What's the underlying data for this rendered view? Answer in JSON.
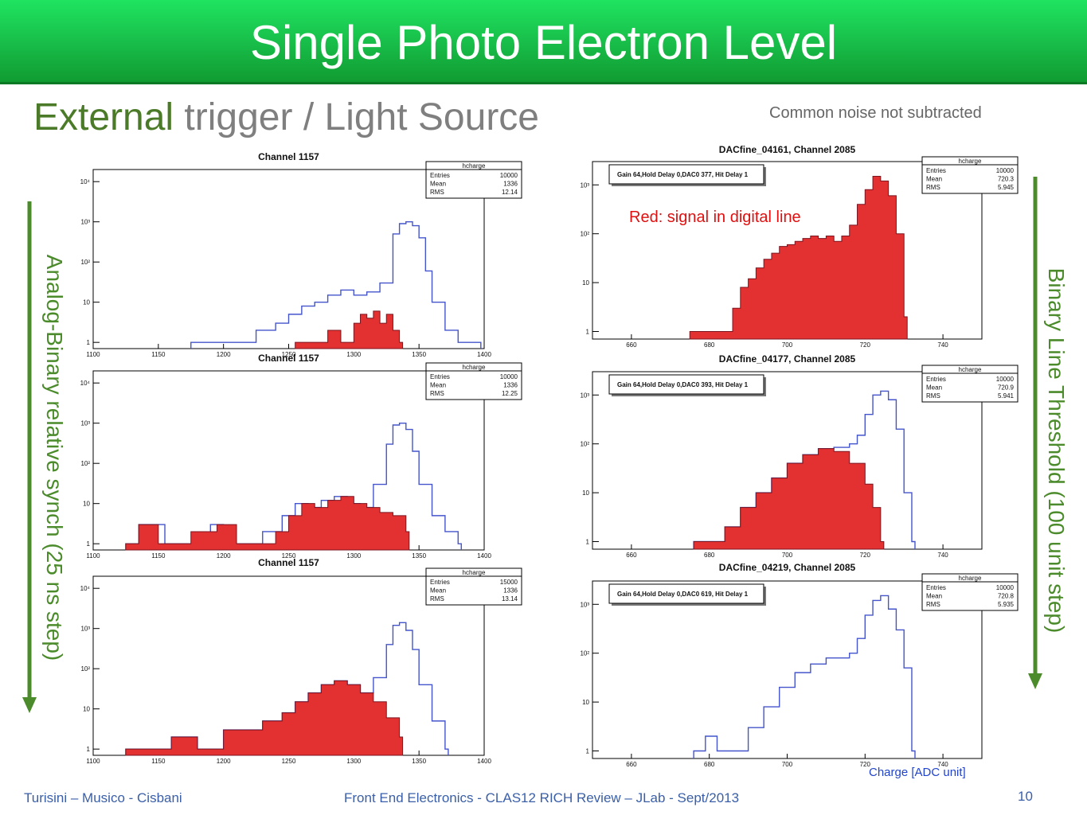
{
  "slide": {
    "title": "Single Photo Electron Level",
    "subtitle_part1": "External",
    "subtitle_part2": " trigger / Light Source",
    "note": "Common noise not subtracted",
    "red_note": "Red: signal in digital line",
    "charge_label": "Charge [ADC unit]",
    "left_label": "Analog-Binary relative synch (25 ns step)",
    "right_label": "Binary Line Threshold (100 unit step)",
    "footer_left": "Turisini – Musico - Cisbani",
    "footer_mid": "Front End Electronics - CLAS12 RICH Review – JLab - Sept/2013",
    "page_number": "10",
    "colors": {
      "title_bar": "#19c24c",
      "arrow": "#4b8b2b",
      "hist_outline": "#4455cc",
      "hist_fill": "#e33030",
      "red_text": "#e01010"
    }
  },
  "chart_data": [
    {
      "type": "histogram",
      "title": "Channel 1157",
      "xlim": [
        1100,
        1400
      ],
      "xticks": [
        "1100",
        "1150",
        "1200",
        "1250",
        "1300",
        "1350",
        "1400"
      ],
      "yscale": "log",
      "ylim": [
        0.7,
        20000
      ],
      "yticks": [
        "1",
        "10",
        "10²",
        "10³",
        "10⁴"
      ],
      "stats": {
        "name": "hcharge",
        "rows": [
          [
            "Entries",
            "10000"
          ],
          [
            "Mean",
            "1336"
          ],
          [
            "RMS",
            "12.14"
          ]
        ]
      },
      "series": [
        {
          "kind": "outline",
          "x": [
            1175,
            1190,
            1200,
            1215,
            1225,
            1240,
            1250,
            1260,
            1270,
            1280,
            1290,
            1300,
            1310,
            1320,
            1330,
            1335,
            1340,
            1345,
            1350,
            1355,
            1360,
            1370,
            1380,
            1395
          ],
          "y": [
            1,
            1,
            1,
            1,
            2,
            3,
            5,
            8,
            10,
            15,
            20,
            15,
            18,
            30,
            500,
            900,
            1000,
            800,
            400,
            60,
            10,
            2,
            1,
            1
          ]
        },
        {
          "kind": "filled",
          "x": [
            1255,
            1265,
            1280,
            1290,
            1300,
            1305,
            1310,
            1315,
            1320,
            1325,
            1330,
            1335
          ],
          "y": [
            1,
            1,
            2,
            1,
            3,
            5,
            4,
            6,
            3,
            5,
            2,
            1
          ]
        }
      ]
    },
    {
      "type": "histogram",
      "title": "Channel 1157",
      "xlim": [
        1100,
        1400
      ],
      "xticks": [
        "1100",
        "1150",
        "1200",
        "1250",
        "1300",
        "1350",
        "1400"
      ],
      "yscale": "log",
      "ylim": [
        0.7,
        20000
      ],
      "yticks": [
        "1",
        "10",
        "10²",
        "10³",
        "10⁴"
      ],
      "stats": {
        "name": "hcharge",
        "rows": [
          [
            "Entries",
            "10000"
          ],
          [
            "Mean",
            "1336"
          ],
          [
            "RMS",
            "12.25"
          ]
        ]
      },
      "series": [
        {
          "kind": "outline",
          "x": [
            1125,
            1135,
            1155,
            1190,
            1200,
            1215,
            1230,
            1245,
            1255,
            1265,
            1275,
            1285,
            1295,
            1305,
            1315,
            1325,
            1330,
            1335,
            1340,
            1345,
            1350,
            1360,
            1370,
            1380
          ],
          "y": [
            1,
            3,
            1,
            3,
            1,
            1,
            2,
            5,
            10,
            8,
            12,
            15,
            10,
            8,
            30,
            300,
            900,
            1000,
            700,
            200,
            30,
            5,
            2,
            1
          ]
        },
        {
          "kind": "filled",
          "x": [
            1125,
            1135,
            1150,
            1165,
            1175,
            1195,
            1210,
            1220,
            1230,
            1240,
            1250,
            1260,
            1270,
            1280,
            1290,
            1300,
            1310,
            1320,
            1330,
            1340
          ],
          "y": [
            1,
            3,
            1,
            1,
            2,
            3,
            1,
            1,
            1,
            2,
            5,
            10,
            8,
            12,
            15,
            10,
            8,
            6,
            5,
            2
          ]
        }
      ]
    },
    {
      "type": "histogram",
      "title": "Channel 1157",
      "xlim": [
        1100,
        1400
      ],
      "xticks": [
        "1100",
        "1150",
        "1200",
        "1250",
        "1300",
        "1350",
        "1400"
      ],
      "yscale": "log",
      "ylim": [
        0.7,
        20000
      ],
      "yticks": [
        "1",
        "10",
        "10²",
        "10³",
        "10⁴"
      ],
      "stats": {
        "name": "hcharge",
        "rows": [
          [
            "Entries",
            "15000"
          ],
          [
            "Mean",
            "1336"
          ],
          [
            "RMS",
            "13.14"
          ]
        ]
      },
      "series": [
        {
          "kind": "outline",
          "x": [
            1125,
            1140,
            1160,
            1180,
            1200,
            1215,
            1230,
            1245,
            1255,
            1265,
            1275,
            1285,
            1295,
            1305,
            1315,
            1325,
            1330,
            1335,
            1340,
            1345,
            1350,
            1360,
            1370
          ],
          "y": [
            1,
            1,
            2,
            1,
            3,
            3,
            5,
            8,
            15,
            25,
            40,
            50,
            40,
            25,
            60,
            400,
            1200,
            1400,
            900,
            300,
            40,
            5,
            1
          ]
        },
        {
          "kind": "filled",
          "x": [
            1125,
            1140,
            1160,
            1180,
            1200,
            1215,
            1230,
            1245,
            1255,
            1265,
            1275,
            1285,
            1295,
            1305,
            1315,
            1325,
            1335
          ],
          "y": [
            1,
            1,
            2,
            1,
            3,
            3,
            5,
            8,
            15,
            25,
            40,
            50,
            40,
            25,
            15,
            6,
            2
          ]
        }
      ]
    },
    {
      "type": "histogram",
      "title": "DACfine_04161,  Channel 2085",
      "xlim": [
        650,
        750
      ],
      "xticks": [
        "660",
        "680",
        "700",
        "720",
        "740"
      ],
      "yscale": "log",
      "ylim": [
        0.7,
        3000
      ],
      "yticks": [
        "1",
        "10",
        "10²",
        "10³"
      ],
      "legend_box": "Gain 64,Hold Delay 0,DAC0 377, Hit Delay 1",
      "stats": {
        "name": "hcharge",
        "rows": [
          [
            "Entries",
            "10000"
          ],
          [
            "Mean",
            "720.3"
          ],
          [
            "RMS",
            "5.945"
          ]
        ]
      },
      "series": [
        {
          "kind": "filled",
          "x": [
            675,
            679,
            683,
            686,
            688,
            690,
            692,
            694,
            696,
            698,
            700,
            702,
            704,
            706,
            708,
            710,
            712,
            714,
            716,
            718,
            720,
            722,
            724,
            726,
            728,
            730
          ],
          "y": [
            1,
            1,
            1,
            3,
            8,
            12,
            20,
            30,
            40,
            55,
            60,
            70,
            80,
            90,
            80,
            90,
            70,
            90,
            150,
            400,
            800,
            1500,
            1200,
            600,
            100,
            2
          ]
        }
      ]
    },
    {
      "type": "histogram",
      "title": "DACfine_04177,  Channel 2085",
      "xlim": [
        650,
        750
      ],
      "xticks": [
        "660",
        "680",
        "700",
        "720",
        "740"
      ],
      "yscale": "log",
      "ylim": [
        0.7,
        3000
      ],
      "yticks": [
        "1",
        "10",
        "10²",
        "10³"
      ],
      "legend_box": "Gain 64,Hold Delay 0,DAC0 393, Hit Delay 1",
      "stats": {
        "name": "hcharge",
        "rows": [
          [
            "Entries",
            "10000"
          ],
          [
            "Mean",
            "720.9"
          ],
          [
            "RMS",
            "5.941"
          ]
        ]
      },
      "series": [
        {
          "kind": "outline",
          "x": [
            676,
            680,
            684,
            688,
            692,
            696,
            700,
            704,
            708,
            712,
            716,
            718,
            720,
            722,
            724,
            726,
            728,
            730,
            732
          ],
          "y": [
            1,
            1,
            2,
            5,
            10,
            20,
            40,
            60,
            80,
            85,
            100,
            150,
            400,
            1000,
            1200,
            800,
            200,
            10,
            1
          ]
        },
        {
          "kind": "filled",
          "x": [
            676,
            680,
            684,
            688,
            692,
            696,
            700,
            704,
            708,
            712,
            716,
            720,
            722,
            724
          ],
          "y": [
            1,
            1,
            2,
            5,
            10,
            20,
            40,
            60,
            80,
            70,
            40,
            15,
            5,
            1
          ]
        }
      ]
    },
    {
      "type": "histogram",
      "title": "DACfine_04219,  Channel 2085",
      "xlim": [
        650,
        750
      ],
      "xticks": [
        "660",
        "680",
        "700",
        "720",
        "740"
      ],
      "yscale": "log",
      "ylim": [
        0.7,
        3000
      ],
      "yticks": [
        "1",
        "10",
        "10²",
        "10³"
      ],
      "legend_box": "Gain 64,Hold Delay 0,DAC0 619, Hit Delay 1",
      "stats": {
        "name": "hcharge",
        "rows": [
          [
            "Entries",
            "10000"
          ],
          [
            "Mean",
            "720.8"
          ],
          [
            "RMS",
            "5.935"
          ]
        ]
      },
      "series": [
        {
          "kind": "outline",
          "x": [
            676,
            679,
            682,
            686,
            690,
            694,
            698,
            702,
            706,
            710,
            714,
            716,
            718,
            720,
            722,
            724,
            726,
            728,
            730,
            732
          ],
          "y": [
            1,
            2,
            1,
            1,
            3,
            8,
            20,
            40,
            60,
            80,
            80,
            100,
            200,
            600,
            1200,
            1500,
            800,
            300,
            50,
            1
          ]
        }
      ]
    }
  ]
}
